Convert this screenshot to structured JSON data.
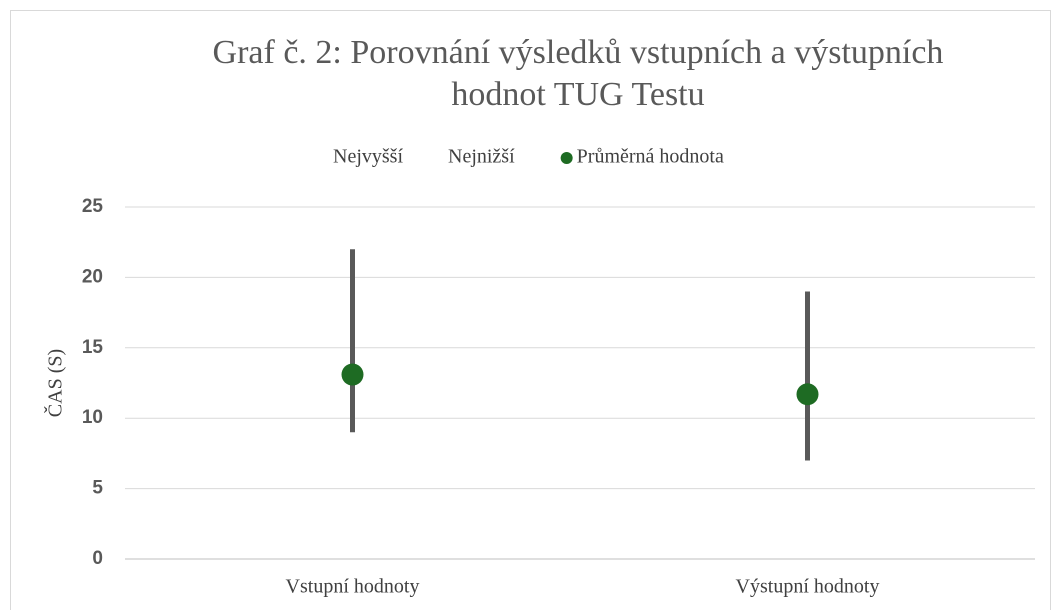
{
  "chart_data": {
    "type": "hilo",
    "title": "Graf č. 2: Porovnání výsledků vstupních a výstupních hodnot TUG Testu",
    "y_label": "ČAS (S)",
    "categories": [
      "Vstupní hodnoty",
      "Výstupní hodnoty"
    ],
    "series": [
      {
        "name": "Nejvyšší",
        "values": [
          22,
          19
        ]
      },
      {
        "name": "Nejnižší",
        "values": [
          9,
          7
        ]
      },
      {
        "name": "Průměrná hodnota",
        "color": "#1e6b23",
        "values": [
          13.1,
          11.7
        ]
      }
    ],
    "hilo_color": "#595959",
    "ylim": [
      0,
      25
    ],
    "yticks": [
      0,
      5,
      10,
      15,
      20,
      25
    ],
    "grid": true,
    "legend": "top"
  }
}
